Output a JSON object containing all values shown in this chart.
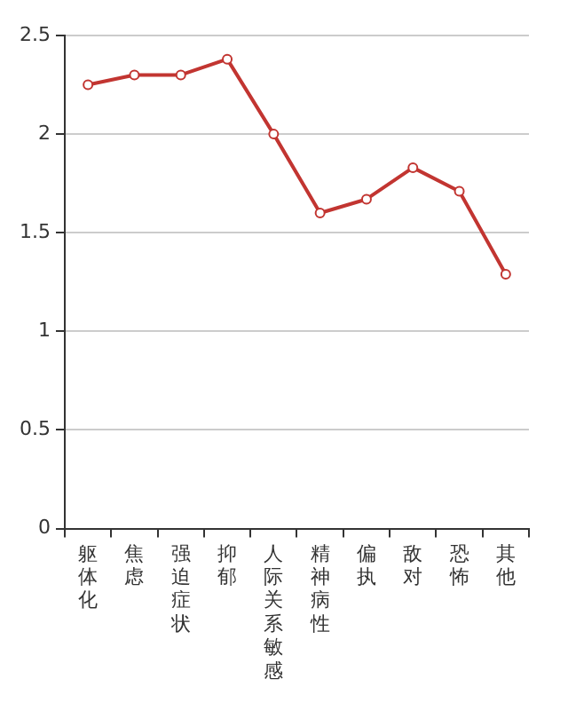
{
  "chart_data": {
    "type": "line",
    "categories": [
      "躯体化",
      "焦虑",
      "强迫症状",
      "抑郁",
      "人际关系敏感",
      "精神病性",
      "偏执",
      "敌对",
      "恐怖",
      "其他"
    ],
    "series": [
      {
        "color": "#c23531",
        "values": [
          2.25,
          2.3,
          2.3,
          2.38,
          2.0,
          1.6,
          1.67,
          1.83,
          1.71,
          1.29
        ]
      }
    ],
    "ylim": [
      0,
      2.5
    ],
    "yticks": [
      0,
      0.5,
      1,
      1.5,
      2,
      2.5
    ],
    "grid": "y",
    "legend": false,
    "marker": "circle",
    "line_style": "solid"
  }
}
